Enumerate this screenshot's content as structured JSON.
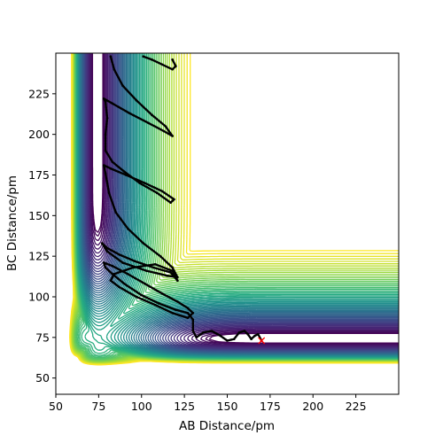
{
  "chart_data": {
    "type": "contour",
    "title": "",
    "xlabel": "AB Distance/pm",
    "ylabel": "BC Distance/pm",
    "xlim": [
      50,
      250
    ],
    "ylim": [
      40,
      250
    ],
    "xticks": [
      50,
      75,
      100,
      125,
      150,
      175,
      200,
      225
    ],
    "yticks": [
      50,
      75,
      100,
      125,
      150,
      175,
      200,
      225
    ],
    "grid": false,
    "colormap": "viridis",
    "contour_levels": 60,
    "surface_model": {
      "kind": "LEPS-like potential energy surface",
      "equilibrium_bond_length_pm": 74,
      "wall_limit_pm": 62
    },
    "series": [
      {
        "kind": "trajectory",
        "color": "#000000",
        "marker": "dots",
        "points": [
          [
            170,
            73
          ],
          [
            168,
            77
          ],
          [
            166,
            76
          ],
          [
            164,
            74
          ],
          [
            162,
            77
          ],
          [
            160,
            79
          ],
          [
            157,
            78
          ],
          [
            154,
            74
          ],
          [
            150,
            73
          ],
          [
            146,
            76
          ],
          [
            141,
            79
          ],
          [
            136,
            78
          ],
          [
            132,
            75
          ],
          [
            130,
            79
          ],
          [
            130,
            86
          ],
          [
            127,
            90
          ],
          [
            120,
            92
          ],
          [
            110,
            96
          ],
          [
            100,
            101
          ],
          [
            90,
            108
          ],
          [
            83,
            114
          ],
          [
            79,
            118
          ],
          [
            78,
            121
          ],
          [
            83,
            119
          ],
          [
            92,
            114
          ],
          [
            102,
            108
          ],
          [
            112,
            102
          ],
          [
            121,
            97
          ],
          [
            127,
            93
          ],
          [
            130,
            90
          ],
          [
            127,
            87
          ],
          [
            118,
            90
          ],
          [
            108,
            95
          ],
          [
            97,
            100
          ],
          [
            87,
            106
          ],
          [
            82,
            110
          ],
          [
            84,
            114
          ],
          [
            95,
            118
          ],
          [
            108,
            120
          ],
          [
            118,
            116
          ],
          [
            121,
            110
          ],
          [
            117,
            115
          ],
          [
            107,
            118
          ],
          [
            96,
            122
          ],
          [
            87,
            126
          ],
          [
            80,
            130
          ],
          [
            77,
            133
          ],
          [
            80,
            128
          ],
          [
            89,
            121
          ],
          [
            103,
            116
          ],
          [
            115,
            113
          ],
          [
            121,
            112
          ],
          [
            118,
            118
          ],
          [
            111,
            125
          ],
          [
            101,
            133
          ],
          [
            92,
            142
          ],
          [
            85,
            152
          ],
          [
            81,
            164
          ],
          [
            79,
            176
          ],
          [
            78,
            181
          ],
          [
            82,
            179
          ],
          [
            91,
            175
          ],
          [
            102,
            170
          ],
          [
            112,
            165
          ],
          [
            119,
            160
          ],
          [
            117,
            158
          ],
          [
            109,
            164
          ],
          [
            99,
            170
          ],
          [
            90,
            177
          ],
          [
            83,
            183
          ],
          [
            79,
            190
          ],
          [
            79,
            200
          ],
          [
            80,
            210
          ],
          [
            79,
            220
          ],
          [
            78,
            222
          ],
          [
            83,
            219
          ],
          [
            93,
            213
          ],
          [
            104,
            207
          ],
          [
            113,
            202
          ],
          [
            118,
            199
          ],
          [
            114,
            205
          ],
          [
            106,
            212
          ],
          [
            97,
            221
          ],
          [
            89,
            230
          ],
          [
            84,
            240
          ],
          [
            82,
            248
          ]
        ]
      },
      {
        "kind": "trajectory-upper-segment",
        "color": "#000000",
        "marker": "dots",
        "points": [
          [
            101,
            248
          ],
          [
            106,
            246
          ],
          [
            112,
            243
          ],
          [
            118,
            240
          ],
          [
            120,
            242
          ],
          [
            118,
            246
          ]
        ]
      },
      {
        "kind": "start-point",
        "color": "#ff0000",
        "marker": "x",
        "points": [
          [
            170,
            73
          ]
        ]
      }
    ]
  }
}
